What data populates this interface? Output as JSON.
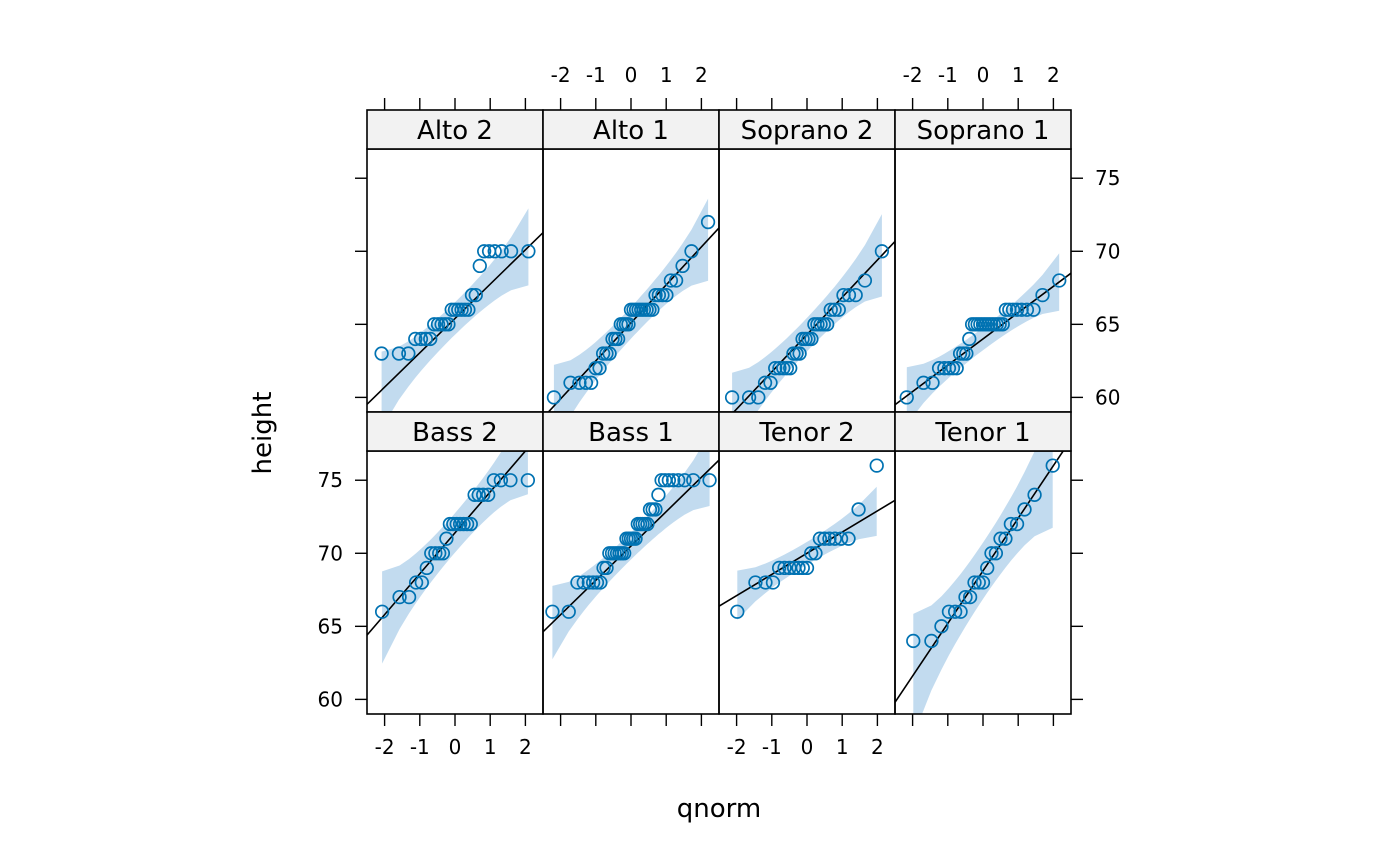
{
  "chart_data": {
    "type": "scatter",
    "xlabel": "qnorm",
    "ylabel": "height",
    "xlim": [
      -2.5,
      2.5
    ],
    "ylim": [
      59,
      77
    ],
    "x_ticks": [
      -2,
      -1,
      0,
      1,
      2
    ],
    "y_ticks": [
      60,
      65,
      70,
      75
    ],
    "point_color": "#0072b2",
    "band_color": "#c2dbef",
    "line_color": "#000000",
    "strip_color": "#f2f2f2",
    "panels": [
      {
        "name": "Alto 2",
        "row": 0,
        "col": 0,
        "values": [
          63,
          63,
          63,
          64,
          64,
          64,
          64,
          65,
          65,
          65,
          65,
          65,
          66,
          66,
          66,
          66,
          66,
          66,
          67,
          67,
          69,
          70,
          70,
          70,
          70,
          70,
          70
        ],
        "line": {
          "intercept": 65.4,
          "slope": 2.35
        }
      },
      {
        "name": "Alto 1",
        "row": 0,
        "col": 1,
        "values": [
          60,
          61,
          61,
          61,
          61,
          62,
          62,
          63,
          63,
          63,
          64,
          64,
          64,
          65,
          65,
          65,
          65,
          66,
          66,
          66,
          66,
          66,
          66,
          66,
          66,
          66,
          67,
          67,
          67,
          67,
          68,
          68,
          69,
          70,
          72
        ],
        "line": {
          "intercept": 65.1,
          "slope": 2.6
        }
      },
      {
        "name": "Soprano 2",
        "row": 0,
        "col": 2,
        "values": [
          60,
          60,
          60,
          61,
          61,
          62,
          62,
          62,
          62,
          62,
          63,
          63,
          63,
          64,
          64,
          64,
          64,
          65,
          65,
          65,
          65,
          65,
          66,
          66,
          66,
          67,
          67,
          67,
          68,
          70
        ],
        "line": {
          "intercept": 64.3,
          "slope": 2.55
        }
      },
      {
        "name": "Soprano 1",
        "row": 0,
        "col": 3,
        "values": [
          60,
          61,
          61,
          62,
          62,
          62,
          62,
          62,
          63,
          63,
          63,
          64,
          65,
          65,
          65,
          65,
          65,
          65,
          65,
          65,
          65,
          65,
          65,
          65,
          66,
          66,
          66,
          66,
          66,
          66,
          66,
          67,
          68
        ],
        "line": {
          "intercept": 64.0,
          "slope": 1.8
        }
      },
      {
        "name": "Bass 2",
        "row": 1,
        "col": 0,
        "values": [
          66,
          67,
          67,
          68,
          68,
          69,
          70,
          70,
          70,
          70,
          71,
          72,
          72,
          72,
          72,
          72,
          72,
          72,
          74,
          74,
          74,
          74,
          75,
          75,
          75,
          75
        ],
        "line": {
          "intercept": 71.4,
          "slope": 2.8
        }
      },
      {
        "name": "Bass 1",
        "row": 1,
        "col": 1,
        "values": [
          66,
          66,
          68,
          68,
          68,
          68,
          68,
          68,
          69,
          69,
          70,
          70,
          70,
          70,
          70,
          70,
          70,
          71,
          71,
          71,
          71,
          71,
          72,
          72,
          72,
          72,
          72,
          73,
          73,
          73,
          74,
          75,
          75,
          75,
          75,
          75,
          75,
          75,
          75
        ],
        "line": {
          "intercept": 70.5,
          "slope": 2.35
        }
      },
      {
        "name": "Tenor 2",
        "row": 1,
        "col": 2,
        "values": [
          66,
          68,
          68,
          68,
          69,
          69,
          69,
          69,
          69,
          69,
          69,
          70,
          70,
          71,
          71,
          71,
          71,
          71,
          71,
          73,
          76
        ],
        "line": {
          "intercept": 70.0,
          "slope": 1.45
        }
      },
      {
        "name": "Tenor 1",
        "row": 1,
        "col": 3,
        "values": [
          64,
          64,
          65,
          66,
          66,
          66,
          67,
          67,
          68,
          68,
          68,
          69,
          70,
          70,
          71,
          71,
          72,
          72,
          73,
          74,
          76
        ],
        "line": {
          "intercept": 68.8,
          "slope": 3.6
        }
      }
    ]
  }
}
